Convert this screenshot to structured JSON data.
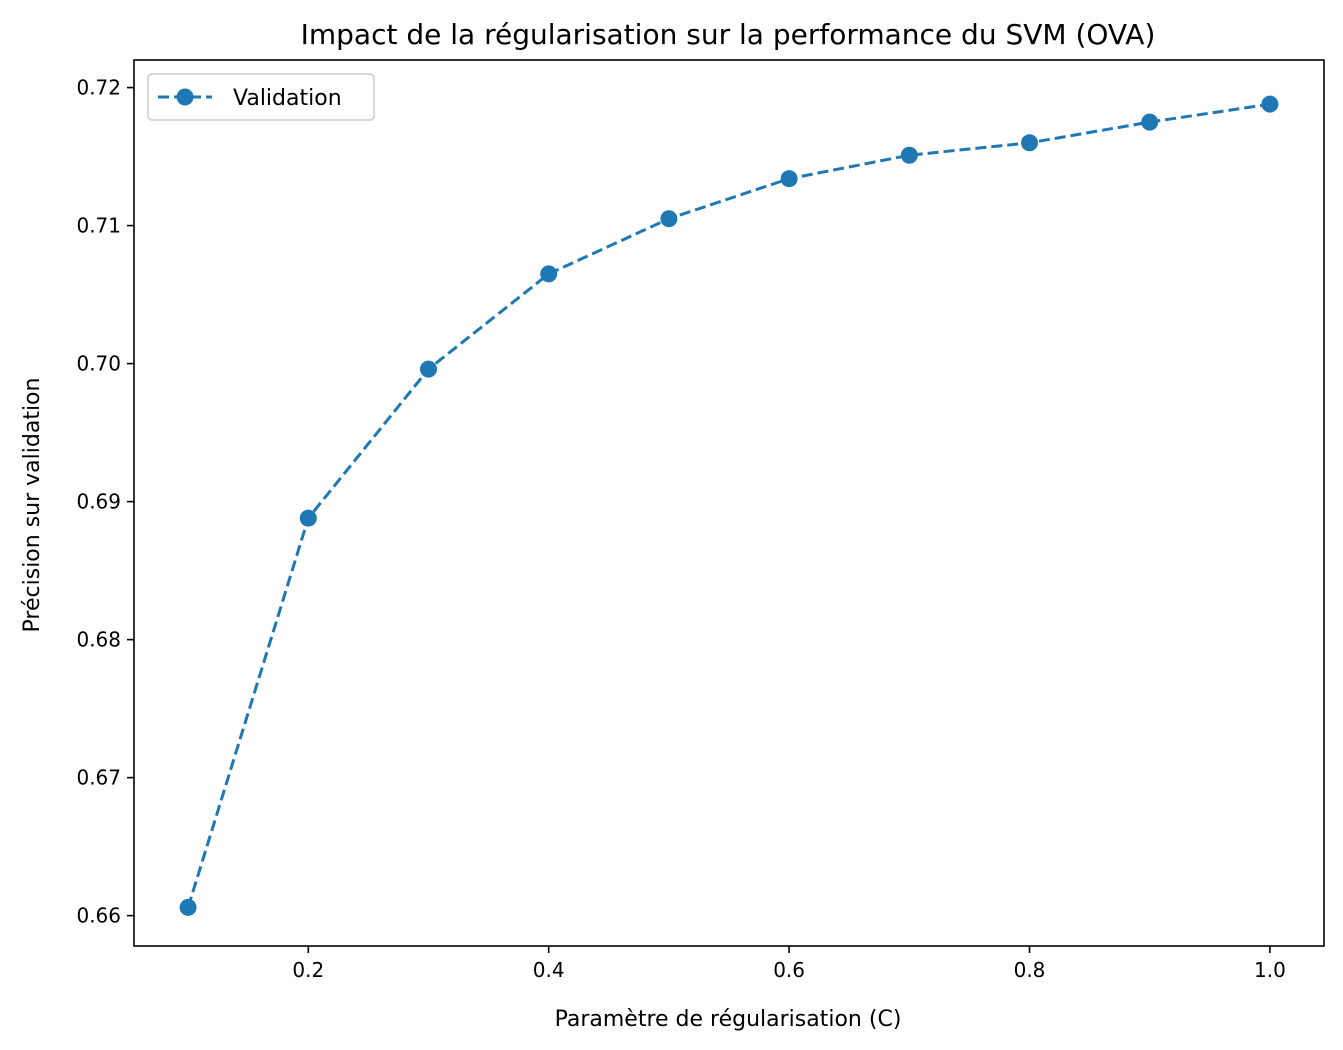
{
  "chart_data": {
    "type": "line",
    "title": "Impact de la régularisation sur la performance du SVM (OVA)",
    "xlabel": "Paramètre de régularisation (C)",
    "ylabel": "Précision sur validation",
    "xlim": [
      0.055,
      1.045
    ],
    "ylim": [
      0.6578,
      0.722
    ],
    "x_ticks": [
      0.2,
      0.4,
      0.6,
      0.8,
      1.0
    ],
    "x_tick_labels": [
      "0.2",
      "0.4",
      "0.6",
      "0.8",
      "1.0"
    ],
    "y_ticks": [
      0.66,
      0.67,
      0.68,
      0.69,
      0.7,
      0.71,
      0.72
    ],
    "y_tick_labels": [
      "0.66",
      "0.67",
      "0.68",
      "0.69",
      "0.70",
      "0.71",
      "0.72"
    ],
    "grid": false,
    "legend_position": "top-left",
    "series": [
      {
        "name": "Validation",
        "color": "#1f77b4",
        "line_style": "dashed",
        "marker": "circle",
        "x": [
          0.1,
          0.2,
          0.3,
          0.4,
          0.5,
          0.6,
          0.7,
          0.8,
          0.9,
          1.0
        ],
        "y": [
          0.6606,
          0.6888,
          0.6996,
          0.7065,
          0.7105,
          0.7134,
          0.7151,
          0.716,
          0.7175,
          0.7188
        ]
      }
    ]
  }
}
